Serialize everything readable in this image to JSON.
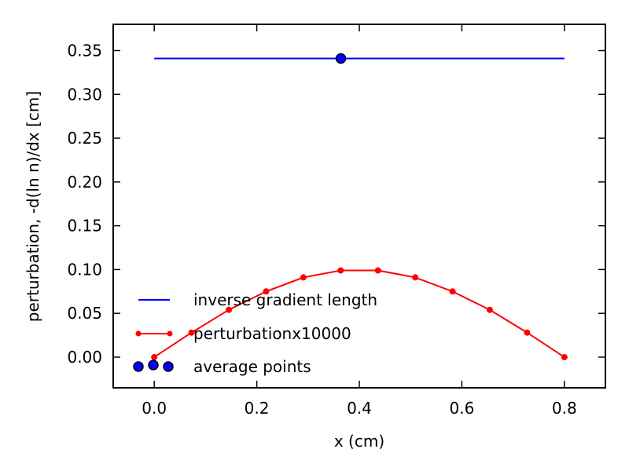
{
  "chart_data": {
    "type": "line",
    "title": "",
    "xlabel": "x (cm)",
    "ylabel": "perturbation, -d(ln n)/dx [cm]",
    "xlim": [
      -0.08,
      0.88
    ],
    "ylim": [
      -0.035,
      0.38
    ],
    "xticks": [
      0.0,
      0.2,
      0.4,
      0.6,
      0.8
    ],
    "xtick_labels": [
      "0.0",
      "0.2",
      "0.4",
      "0.6",
      "0.8"
    ],
    "yticks": [
      0.0,
      0.05,
      0.1,
      0.15,
      0.2,
      0.25,
      0.3,
      0.35
    ],
    "ytick_labels": [
      "0.00",
      "0.05",
      "0.10",
      "0.15",
      "0.20",
      "0.25",
      "0.30",
      "0.35"
    ],
    "grid": false,
    "legend": {
      "placement": "lower-left"
    },
    "series": [
      {
        "name": "inverse gradient length",
        "kind": "line",
        "color": "#0000ff",
        "x": [
          0.0,
          0.8
        ],
        "y": [
          0.341,
          0.341
        ]
      },
      {
        "name": "perturbationx10000",
        "kind": "line-marker",
        "color": "#ff0000",
        "x": [
          0.0,
          0.0727,
          0.1455,
          0.2182,
          0.2909,
          0.3636,
          0.4364,
          0.5091,
          0.5818,
          0.6545,
          0.7273,
          0.8
        ],
        "y": [
          0.0,
          0.028,
          0.054,
          0.075,
          0.091,
          0.099,
          0.099,
          0.091,
          0.075,
          0.054,
          0.028,
          0.0
        ]
      },
      {
        "name": "average points",
        "kind": "scatter",
        "color": "#0000ff",
        "x": [
          0.364
        ],
        "y": [
          0.341
        ]
      }
    ]
  }
}
